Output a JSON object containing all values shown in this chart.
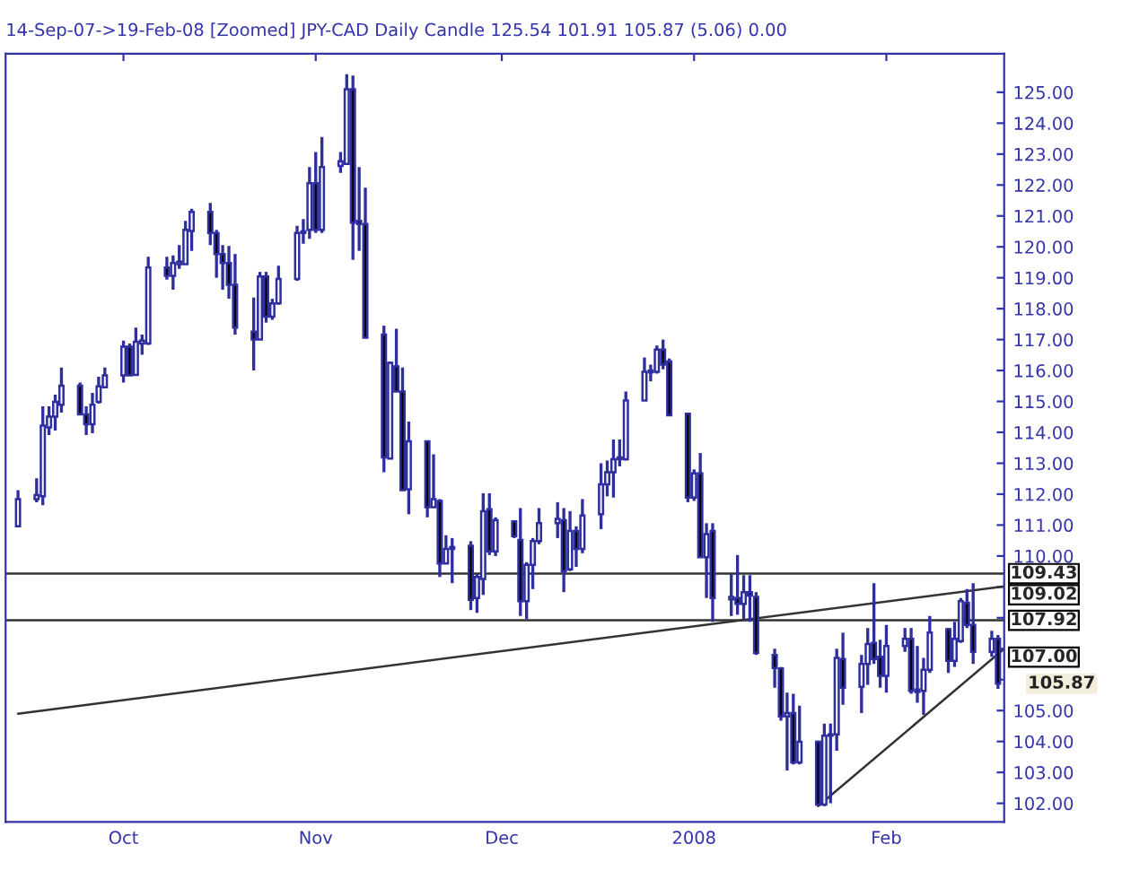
{
  "chart_data": {
    "type": "candlestick",
    "title": "14-Sep-07->19-Feb-08 [Zoomed] JPY-CAD Daily Candle 125.54 101.91 105.87 (5.06) 0.00",
    "x": [
      "2007-09-14",
      "2007-09-17",
      "2007-09-18",
      "2007-09-19",
      "2007-09-20",
      "2007-09-21",
      "2007-09-24",
      "2007-09-25",
      "2007-09-26",
      "2007-09-27",
      "2007-09-28",
      "2007-10-01",
      "2007-10-02",
      "2007-10-03",
      "2007-10-04",
      "2007-10-05",
      "2007-10-08",
      "2007-10-09",
      "2007-10-10",
      "2007-10-11",
      "2007-10-12",
      "2007-10-15",
      "2007-10-16",
      "2007-10-17",
      "2007-10-18",
      "2007-10-19",
      "2007-10-22",
      "2007-10-23",
      "2007-10-24",
      "2007-10-25",
      "2007-10-26",
      "2007-10-29",
      "2007-10-30",
      "2007-10-31",
      "2007-11-01",
      "2007-11-02",
      "2007-11-05",
      "2007-11-06",
      "2007-11-07",
      "2007-11-08",
      "2007-11-09",
      "2007-11-12",
      "2007-11-13",
      "2007-11-14",
      "2007-11-15",
      "2007-11-16",
      "2007-11-19",
      "2007-11-20",
      "2007-11-21",
      "2007-11-22",
      "2007-11-23",
      "2007-11-26",
      "2007-11-27",
      "2007-11-28",
      "2007-11-29",
      "2007-11-30",
      "2007-12-03",
      "2007-12-04",
      "2007-12-05",
      "2007-12-06",
      "2007-12-07",
      "2007-12-10",
      "2007-12-11",
      "2007-12-12",
      "2007-12-13",
      "2007-12-14",
      "2007-12-17",
      "2007-12-18",
      "2007-12-19",
      "2007-12-20",
      "2007-12-21",
      "2007-12-24",
      "2007-12-25",
      "2007-12-26",
      "2007-12-27",
      "2007-12-28",
      "2007-12-31",
      "2008-01-01",
      "2008-01-02",
      "2008-01-03",
      "2008-01-04",
      "2008-01-07",
      "2008-01-08",
      "2008-01-09",
      "2008-01-10",
      "2008-01-11",
      "2008-01-14",
      "2008-01-15",
      "2008-01-16",
      "2008-01-17",
      "2008-01-18",
      "2008-01-21",
      "2008-01-22",
      "2008-01-23",
      "2008-01-24",
      "2008-01-25",
      "2008-01-28",
      "2008-01-29",
      "2008-01-30",
      "2008-01-31",
      "2008-02-01",
      "2008-02-04",
      "2008-02-05",
      "2008-02-06",
      "2008-02-07",
      "2008-02-08",
      "2008-02-11",
      "2008-02-12",
      "2008-02-13",
      "2008-02-14",
      "2008-02-15",
      "2008-02-18",
      "2008-02-19"
    ],
    "ohlc": [
      [
        110.96,
        112.13,
        110.96,
        111.84
      ],
      [
        111.84,
        112.51,
        111.74,
        111.97
      ],
      [
        111.93,
        114.84,
        111.64,
        114.22
      ],
      [
        114.16,
        114.84,
        113.91,
        114.51
      ],
      [
        114.51,
        115.22,
        114.06,
        114.99
      ],
      [
        114.89,
        116.1,
        114.64,
        115.51
      ],
      [
        115.51,
        115.61,
        114.58,
        114.58
      ],
      [
        114.58,
        114.84,
        113.91,
        114.26
      ],
      [
        114.26,
        115.28,
        113.97,
        114.89
      ],
      [
        114.99,
        115.8,
        114.93,
        115.49
      ],
      [
        115.46,
        116.1,
        115.42,
        115.84
      ],
      [
        115.84,
        116.97,
        115.61,
        116.77
      ],
      [
        116.77,
        116.87,
        115.84,
        115.84
      ],
      [
        115.86,
        117.39,
        115.86,
        116.93
      ],
      [
        116.87,
        117.16,
        116.51,
        116.97
      ],
      [
        116.87,
        119.68,
        116.83,
        119.33
      ],
      [
        119.33,
        119.68,
        118.94,
        119.06
      ],
      [
        119.06,
        119.72,
        118.61,
        119.48
      ],
      [
        119.44,
        120.06,
        119.29,
        119.52
      ],
      [
        119.44,
        120.84,
        119.44,
        120.55
      ],
      [
        120.51,
        121.23,
        119.87,
        121.13
      ],
      [
        121.13,
        121.42,
        120.06,
        120.45
      ],
      [
        120.45,
        120.55,
        119.0,
        119.77
      ],
      [
        119.77,
        120.06,
        118.61,
        119.48
      ],
      [
        119.48,
        120.03,
        118.32,
        118.77
      ],
      [
        118.77,
        119.77,
        117.16,
        117.39
      ],
      [
        117.26,
        118.36,
        116.0,
        117.0
      ],
      [
        117.0,
        119.19,
        117.0,
        119.04
      ],
      [
        119.04,
        119.19,
        117.55,
        117.74
      ],
      [
        117.74,
        118.32,
        117.64,
        118.17
      ],
      [
        118.17,
        119.39,
        118.13,
        118.96
      ],
      [
        118.96,
        120.68,
        118.9,
        120.45
      ],
      [
        120.45,
        120.9,
        120.1,
        120.5
      ],
      [
        120.55,
        122.58,
        120.26,
        122.06
      ],
      [
        122.06,
        123.07,
        120.45,
        120.55
      ],
      [
        120.55,
        123.55,
        120.45,
        122.58
      ],
      [
        122.62,
        123.07,
        122.39,
        122.77
      ],
      [
        122.68,
        125.58,
        122.68,
        125.1
      ],
      [
        125.1,
        125.54,
        119.58,
        120.78
      ],
      [
        120.84,
        122.58,
        119.87,
        120.74
      ],
      [
        120.74,
        121.91,
        117.06,
        117.06
      ],
      [
        117.16,
        117.45,
        112.71,
        113.19
      ],
      [
        113.15,
        116.29,
        113.15,
        116.25
      ],
      [
        116.13,
        117.35,
        115.32,
        115.32
      ],
      [
        115.32,
        116.1,
        112.13,
        112.13
      ],
      [
        112.16,
        114.35,
        111.35,
        113.71
      ],
      [
        113.71,
        113.71,
        111.25,
        111.58
      ],
      [
        111.58,
        113.29,
        111.58,
        111.84
      ],
      [
        111.78,
        111.84,
        109.32,
        109.76
      ],
      [
        109.76,
        110.67,
        109.76,
        110.23
      ],
      [
        110.23,
        110.58,
        109.12,
        110.29
      ],
      [
        110.33,
        110.48,
        108.25,
        108.58
      ],
      [
        108.64,
        109.42,
        108.16,
        109.32
      ],
      [
        109.26,
        112.03,
        108.74,
        111.45
      ],
      [
        111.51,
        112.03,
        110.03,
        110.15
      ],
      [
        110.15,
        111.25,
        110.0,
        111.16
      ],
      [
        111.12,
        111.16,
        110.58,
        110.64
      ],
      [
        110.52,
        111.55,
        108.06,
        108.54
      ],
      [
        108.54,
        109.8,
        107.96,
        109.71
      ],
      [
        109.71,
        110.58,
        108.93,
        110.48
      ],
      [
        110.48,
        111.55,
        110.38,
        111.06
      ],
      [
        111.06,
        111.74,
        110.58,
        111.2
      ],
      [
        111.16,
        111.55,
        108.83,
        109.51
      ],
      [
        109.57,
        111.45,
        109.51,
        110.81
      ],
      [
        110.81,
        110.96,
        109.65,
        110.23
      ],
      [
        110.23,
        111.84,
        110.09,
        111.31
      ],
      [
        111.35,
        113.0,
        110.87,
        112.32
      ],
      [
        112.32,
        113.09,
        111.93,
        112.71
      ],
      [
        112.71,
        113.77,
        111.89,
        113.13
      ],
      [
        113.13,
        113.77,
        112.9,
        113.19
      ],
      [
        113.13,
        115.32,
        113.09,
        115.03
      ],
      [
        115.03,
        116.42,
        115.03,
        115.96
      ],
      [
        115.94,
        116.19,
        115.65,
        116.0
      ],
      [
        115.96,
        116.81,
        115.9,
        116.68
      ],
      [
        116.68,
        117.0,
        116.04,
        116.19
      ],
      [
        116.29,
        116.39,
        114.55,
        114.55
      ],
      [
        114.6,
        114.64,
        111.74,
        111.89
      ],
      [
        111.89,
        112.8,
        111.78,
        112.67
      ],
      [
        112.67,
        113.33,
        109.96,
        109.96
      ],
      [
        109.96,
        111.06,
        108.64,
        110.71
      ],
      [
        110.81,
        111.06,
        107.87,
        108.64
      ],
      [
        108.6,
        109.42,
        108.06,
        108.68
      ],
      [
        108.64,
        110.03,
        108.1,
        108.45
      ],
      [
        108.45,
        109.38,
        107.91,
        108.83
      ],
      [
        108.83,
        109.38,
        107.87,
        108.72
      ],
      [
        108.68,
        108.83,
        106.8,
        106.86
      ],
      [
        106.8,
        107.0,
        105.74,
        106.38
      ],
      [
        106.36,
        106.41,
        104.67,
        104.81
      ],
      [
        104.81,
        105.58,
        103.06,
        104.92
      ],
      [
        104.92,
        105.54,
        103.26,
        103.32
      ],
      [
        103.32,
        105.16,
        103.26,
        103.99
      ],
      [
        103.99,
        104.03,
        101.91,
        101.96
      ],
      [
        101.96,
        104.58,
        101.91,
        104.19
      ],
      [
        104.19,
        104.58,
        102.0,
        104.22
      ],
      [
        104.23,
        107.0,
        103.7,
        106.7
      ],
      [
        106.67,
        107.52,
        105.19,
        105.74
      ],
      [
        105.77,
        106.8,
        104.92,
        106.51
      ],
      [
        106.51,
        107.67,
        105.83,
        107.15
      ],
      [
        107.19,
        109.12,
        106.51,
        106.67
      ],
      [
        106.74,
        107.29,
        105.74,
        106.12
      ],
      [
        106.12,
        107.77,
        105.58,
        107.09
      ],
      [
        107.09,
        107.67,
        106.9,
        107.32
      ],
      [
        107.32,
        107.67,
        105.54,
        105.64
      ],
      [
        105.68,
        107.09,
        105.25,
        105.6
      ],
      [
        105.64,
        106.7,
        104.86,
        106.32
      ],
      [
        106.32,
        108.06,
        106.22,
        107.52
      ],
      [
        107.63,
        107.67,
        106.22,
        106.61
      ],
      [
        106.61,
        107.87,
        106.41,
        107.32
      ],
      [
        107.25,
        108.64,
        107.19,
        108.54
      ],
      [
        108.49,
        108.93,
        107.67,
        107.77
      ],
      [
        107.77,
        109.12,
        106.51,
        106.9
      ],
      [
        106.9,
        107.58,
        106.74,
        107.32
      ],
      [
        107.32,
        107.44,
        105.7,
        105.87
      ]
    ],
    "color": "#2e2e9e",
    "colors": [
      "#ffffff",
      "#ffffff",
      "#ffffff",
      "#ffffff",
      "#ffffff",
      "#ffffff",
      "#000000",
      "#000000",
      "#ffffff",
      "#ffffff",
      "#ffffff",
      "#ffffff",
      "#000000",
      "#ffffff",
      "#ffffff",
      "#ffffff",
      "#000000",
      "#ffffff",
      "#ffffff",
      "#ffffff",
      "#ffffff",
      "#000000",
      "#000000",
      "#000000",
      "#000000",
      "#000000",
      "#000000",
      "#ffffff",
      "#000000",
      "#ffffff",
      "#ffffff",
      "#ffffff",
      "#ffffff",
      "#ffffff",
      "#000000",
      "#ffffff",
      "#ffffff",
      "#ffffff",
      "#000000",
      "#000000",
      "#000000",
      "#000000",
      "#ffffff",
      "#000000",
      "#000000",
      "#ffffff",
      "#000000",
      "#ffffff",
      "#000000",
      "#ffffff",
      "#ffffff",
      "#000000",
      "#ffffff",
      "#ffffff",
      "#000000",
      "#ffffff",
      "#000000",
      "#000000",
      "#ffffff",
      "#ffffff",
      "#ffffff",
      "#ffffff",
      "#000000",
      "#ffffff",
      "#000000",
      "#ffffff",
      "#ffffff",
      "#ffffff",
      "#ffffff",
      "#ffffff",
      "#ffffff",
      "#ffffff",
      "#ffffff",
      "#ffffff",
      "#000000",
      "#000000",
      "#000000",
      "#ffffff",
      "#000000",
      "#ffffff",
      "#000000",
      "#ffffff",
      "#000000",
      "#ffffff",
      "#000000",
      "#000000",
      "#000000",
      "#000000",
      "#ffffff",
      "#000000",
      "#ffffff",
      "#000000",
      "#ffffff",
      "#ffffff",
      "#ffffff",
      "#000000",
      "#ffffff",
      "#ffffff",
      "#000000",
      "#000000",
      "#ffffff",
      "#ffffff",
      "#000000",
      "#000000",
      "#ffffff",
      "#ffffff",
      "#000000",
      "#ffffff",
      "#ffffff",
      "#000000",
      "#000000",
      "#ffffff",
      "#000000"
    ],
    "series": [
      {
        "type": "line",
        "color": "#333333",
        "x": [
          "2007-09-14",
          "2008-02-20"
        ],
        "values": [
          104.9,
          109.02
        ],
        "value_labels": [
          null,
          "109.02"
        ]
      },
      {
        "type": "line",
        "color": "#333333",
        "x": [
          "2008-01-21",
          "2008-02-20"
        ],
        "values": [
          101.91,
          107.0
        ],
        "value_labels": [
          null,
          "107.00"
        ]
      }
    ],
    "ref_lines": [
      {
        "axis": "y",
        "value": 109.43,
        "label": "109.43",
        "color": "#333333"
      },
      {
        "axis": "y",
        "value": 107.92,
        "label": "107.92",
        "color": "#333333"
      }
    ],
    "annotations": [
      {
        "text": "105.87",
        "x": "2008-02-19",
        "y": 105.87
      }
    ],
    "xlim": [
      "2007-09-12",
      "2008-02-20"
    ],
    "xticks": [
      {
        "value": "2007-10-01",
        "label": "Oct"
      },
      {
        "value": "2007-11-01",
        "label": "Nov"
      },
      {
        "value": "2007-12-01",
        "label": "Dec"
      },
      {
        "value": "2008-01-01",
        "label": "2008"
      },
      {
        "value": "2008-02-01",
        "label": "Feb"
      }
    ],
    "ylim": [
      101.4,
      126.25
    ],
    "yticks": [
      {
        "value": 102,
        "label": "102.00"
      },
      {
        "value": 103,
        "label": "103.00"
      },
      {
        "value": 104,
        "label": "104.00"
      },
      {
        "value": 105,
        "label": "105.00"
      },
      {
        "value": 106,
        "label": null
      },
      {
        "value": 107,
        "label": null
      },
      {
        "value": 108,
        "label": null
      },
      {
        "value": 109,
        "label": null
      },
      {
        "value": 110,
        "label": "110.00"
      },
      {
        "value": 111,
        "label": "111.00"
      },
      {
        "value": 112,
        "label": "112.00"
      },
      {
        "value": 113,
        "label": "113.00"
      },
      {
        "value": 114,
        "label": "114.00"
      },
      {
        "value": 115,
        "label": "115.00"
      },
      {
        "value": 116,
        "label": "116.00"
      },
      {
        "value": 117,
        "label": "117.00"
      },
      {
        "value": 118,
        "label": "118.00"
      },
      {
        "value": 119,
        "label": "119.00"
      },
      {
        "value": 120,
        "label": "120.00"
      },
      {
        "value": 121,
        "label": "121.00"
      },
      {
        "value": 122,
        "label": "122.00"
      },
      {
        "value": 123,
        "label": "123.00"
      },
      {
        "value": 124,
        "label": "124.00"
      },
      {
        "value": 125,
        "label": "125.00"
      }
    ]
  }
}
